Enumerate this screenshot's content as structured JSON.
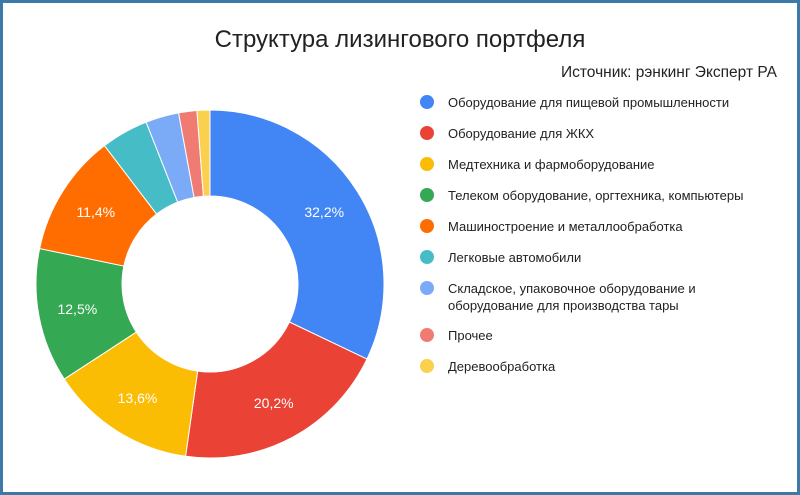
{
  "chart_data": {
    "type": "pie",
    "title": "Структура лизингового портфеля",
    "subtitle": "Источник: рэнкинг Эксперт РА",
    "legend_position": "right",
    "slices": [
      {
        "label": "Оборудование для пищевой промышленности",
        "value": 32.2,
        "value_label": "32,2%",
        "color": "#4285f4"
      },
      {
        "label": "Оборудование для ЖКХ",
        "value": 20.2,
        "value_label": "20,2%",
        "color": "#ea4335"
      },
      {
        "label": "Медтехника и фармоборудование",
        "value": 13.6,
        "value_label": "13,6%",
        "color": "#fbbc04"
      },
      {
        "label": "Телеком оборудование, оргтехника, компьютеры",
        "value": 12.5,
        "value_label": "12,5%",
        "color": "#34a853"
      },
      {
        "label": "Машиностроение и металлообработка",
        "value": 11.4,
        "value_label": "11,4%",
        "color": "#ff6d01"
      },
      {
        "label": "Легковые автомобили",
        "value": 4.4,
        "value_label": "",
        "color": "#46bdc6"
      },
      {
        "label": "Складское, упаковочное оборудование и оборудование для производства тары",
        "value": 3.1,
        "value_label": "",
        "color": "#7baaf7"
      },
      {
        "label": "Прочее",
        "value": 1.7,
        "value_label": "",
        "color": "#f07b72"
      },
      {
        "label": "Деревообработка",
        "value": 1.2,
        "value_label": "",
        "color": "#fcd04f"
      }
    ]
  }
}
